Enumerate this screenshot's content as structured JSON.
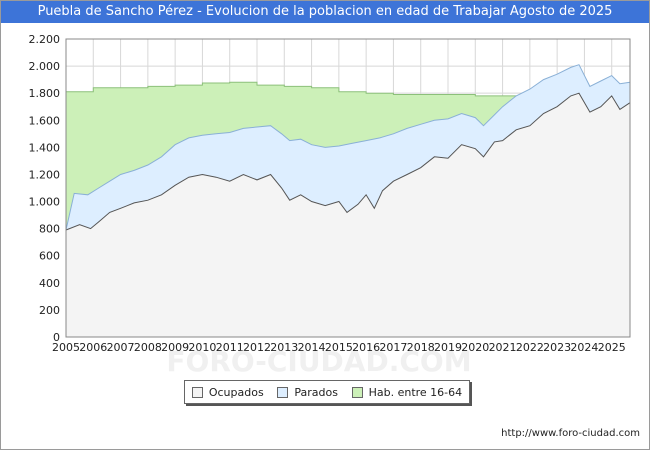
{
  "chart_data": {
    "type": "area",
    "title": "Puebla de Sancho Pérez - Evolucion de la poblacion en edad de Trabajar Agosto de 2025",
    "xlabel": "",
    "ylabel": "",
    "ylim": [
      0,
      2200
    ],
    "yticks": [
      0,
      200,
      400,
      600,
      800,
      1000,
      1200,
      1400,
      1600,
      1800,
      2000,
      2200
    ],
    "ytick_labels": [
      "0",
      "200",
      "400",
      "600",
      "800",
      "1.000",
      "1.200",
      "1.400",
      "1.600",
      "1.800",
      "2.000",
      "2.200"
    ],
    "xlim": [
      2005,
      2025.67
    ],
    "xticks": [
      "2005",
      "2006",
      "2007",
      "2008",
      "2009",
      "2010",
      "2011",
      "2012",
      "2013",
      "2014",
      "2015",
      "2016",
      "2017",
      "2018",
      "2019",
      "2020",
      "2021",
      "2022",
      "2023",
      "2024",
      "2025"
    ],
    "grid": true,
    "legend_position": "bottom",
    "series": [
      {
        "name": "Ocupados",
        "color": "#f4f4f4",
        "line_color": "#555555",
        "points": [
          [
            2005,
            790
          ],
          [
            2005.5,
            830
          ],
          [
            2005.9,
            800
          ],
          [
            2006.2,
            850
          ],
          [
            2006.6,
            920
          ],
          [
            2007,
            950
          ],
          [
            2007.5,
            990
          ],
          [
            2008,
            1010
          ],
          [
            2008.5,
            1050
          ],
          [
            2009,
            1120
          ],
          [
            2009.5,
            1180
          ],
          [
            2010,
            1200
          ],
          [
            2010.5,
            1180
          ],
          [
            2011,
            1150
          ],
          [
            2011.5,
            1200
          ],
          [
            2012,
            1160
          ],
          [
            2012.5,
            1200
          ],
          [
            2012.9,
            1100
          ],
          [
            2013.2,
            1010
          ],
          [
            2013.6,
            1050
          ],
          [
            2014,
            1000
          ],
          [
            2014.5,
            970
          ],
          [
            2015,
            1000
          ],
          [
            2015.3,
            920
          ],
          [
            2015.7,
            980
          ],
          [
            2016,
            1050
          ],
          [
            2016.3,
            950
          ],
          [
            2016.6,
            1080
          ],
          [
            2017,
            1150
          ],
          [
            2017.5,
            1200
          ],
          [
            2018,
            1250
          ],
          [
            2018.5,
            1330
          ],
          [
            2019,
            1320
          ],
          [
            2019.5,
            1420
          ],
          [
            2020,
            1390
          ],
          [
            2020.3,
            1330
          ],
          [
            2020.7,
            1440
          ],
          [
            2021,
            1450
          ],
          [
            2021.5,
            1530
          ],
          [
            2022,
            1560
          ],
          [
            2022.5,
            1650
          ],
          [
            2023,
            1700
          ],
          [
            2023.5,
            1780
          ],
          [
            2023.8,
            1800
          ],
          [
            2024.2,
            1660
          ],
          [
            2024.6,
            1700
          ],
          [
            2025,
            1780
          ],
          [
            2025.3,
            1680
          ],
          [
            2025.67,
            1730
          ]
        ]
      },
      {
        "name": "Parados",
        "color": "#ddeeff",
        "line_color": "#8ab0d6",
        "points": [
          [
            2005,
            790
          ],
          [
            2005.3,
            1060
          ],
          [
            2005.8,
            1050
          ],
          [
            2006.2,
            1100
          ],
          [
            2006.6,
            1150
          ],
          [
            2007,
            1200
          ],
          [
            2007.5,
            1230
          ],
          [
            2008,
            1270
          ],
          [
            2008.5,
            1330
          ],
          [
            2009,
            1420
          ],
          [
            2009.5,
            1470
          ],
          [
            2010,
            1490
          ],
          [
            2010.5,
            1500
          ],
          [
            2011,
            1510
          ],
          [
            2011.5,
            1540
          ],
          [
            2012,
            1550
          ],
          [
            2012.5,
            1560
          ],
          [
            2012.9,
            1500
          ],
          [
            2013.2,
            1450
          ],
          [
            2013.6,
            1460
          ],
          [
            2014,
            1420
          ],
          [
            2014.5,
            1400
          ],
          [
            2015,
            1410
          ],
          [
            2015.5,
            1430
          ],
          [
            2016,
            1450
          ],
          [
            2016.5,
            1470
          ],
          [
            2017,
            1500
          ],
          [
            2017.5,
            1540
          ],
          [
            2018,
            1570
          ],
          [
            2018.5,
            1600
          ],
          [
            2019,
            1610
          ],
          [
            2019.5,
            1650
          ],
          [
            2020,
            1620
          ],
          [
            2020.3,
            1560
          ],
          [
            2020.7,
            1640
          ],
          [
            2021,
            1700
          ],
          [
            2021.5,
            1780
          ],
          [
            2022,
            1830
          ],
          [
            2022.5,
            1900
          ],
          [
            2023,
            1940
          ],
          [
            2023.5,
            1990
          ],
          [
            2023.8,
            2010
          ],
          [
            2024.2,
            1850
          ],
          [
            2024.6,
            1890
          ],
          [
            2025,
            1930
          ],
          [
            2025.3,
            1870
          ],
          [
            2025.67,
            1880
          ]
        ]
      },
      {
        "name": "Hab. entre 16-64",
        "color": "#ccf0b8",
        "line_color": "#8cc07a",
        "points": [
          [
            2005,
            1810
          ],
          [
            2006,
            1810
          ],
          [
            2006,
            1840
          ],
          [
            2008,
            1840
          ],
          [
            2008,
            1850
          ],
          [
            2009,
            1850
          ],
          [
            2009,
            1860
          ],
          [
            2010,
            1860
          ],
          [
            2010,
            1875
          ],
          [
            2011,
            1875
          ],
          [
            2011,
            1880
          ],
          [
            2012,
            1880
          ],
          [
            2012,
            1860
          ],
          [
            2013,
            1860
          ],
          [
            2013,
            1850
          ],
          [
            2014,
            1850
          ],
          [
            2014,
            1840
          ],
          [
            2015,
            1840
          ],
          [
            2015,
            1810
          ],
          [
            2016,
            1810
          ],
          [
            2016,
            1800
          ],
          [
            2017,
            1800
          ],
          [
            2017,
            1790
          ],
          [
            2018,
            1790
          ],
          [
            2018,
            1790
          ],
          [
            2019,
            1790
          ],
          [
            2019,
            1790
          ],
          [
            2020,
            1790
          ],
          [
            2020,
            1780
          ],
          [
            2021,
            1780
          ],
          [
            2021,
            1780
          ],
          [
            2022,
            1780
          ],
          [
            2022,
            1775
          ],
          [
            2023,
            1775
          ],
          [
            2023,
            1770
          ],
          [
            2024,
            1770
          ],
          [
            2024,
            1770
          ],
          [
            2025,
            1770
          ],
          [
            2025,
            1765
          ],
          [
            2025.67,
            1765
          ]
        ]
      }
    ]
  },
  "watermark": "FORO-CIUDAD.COM",
  "source_text": "http://www.foro-ciudad.com"
}
